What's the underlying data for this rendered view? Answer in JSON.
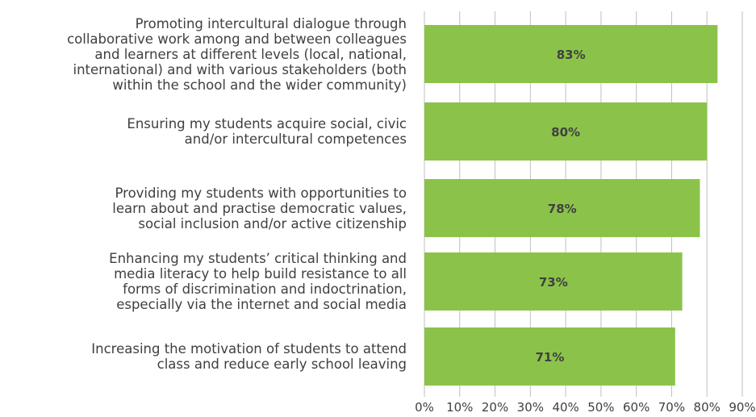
{
  "chart_data": {
    "type": "bar",
    "orientation": "horizontal",
    "categories": [
      [
        "Promoting intercultural dialogue through",
        "collaborative work among and between colleagues",
        "and learners at different levels (local, national,",
        "international) and with various stakeholders (both",
        "within the school and the wider community)"
      ],
      [
        "Ensuring my students acquire social, civic",
        "and/or intercultural competences"
      ],
      [
        "Providing my students with opportunities to",
        "learn about and practise democratic values,",
        "social inclusion and/or active citizenship"
      ],
      [
        "Enhancing my students’ critical thinking and",
        "media literacy to help build resistance to all",
        "forms of discrimination and indoctrination,",
        "especially via the internet and social media"
      ],
      [
        "Increasing the motivation of students to attend",
        "class and reduce early school leaving"
      ]
    ],
    "values": [
      83,
      80,
      78,
      73,
      71
    ],
    "data_labels": [
      "83%",
      "80%",
      "78%",
      "73%",
      "71%"
    ],
    "xlim": [
      0,
      90
    ],
    "x_ticks": [
      0,
      10,
      20,
      30,
      40,
      50,
      60,
      70,
      80,
      90
    ],
    "x_tick_labels": [
      "0%",
      "10%",
      "20%",
      "30%",
      "40%",
      "50%",
      "60%",
      "70%",
      "80%",
      "90%"
    ],
    "title": "",
    "xlabel": "",
    "ylabel": "",
    "grid": true,
    "legend": "none",
    "bar_color": "#8bc34a",
    "grid_color": "#bfbfbf",
    "text_color": "#404040"
  }
}
